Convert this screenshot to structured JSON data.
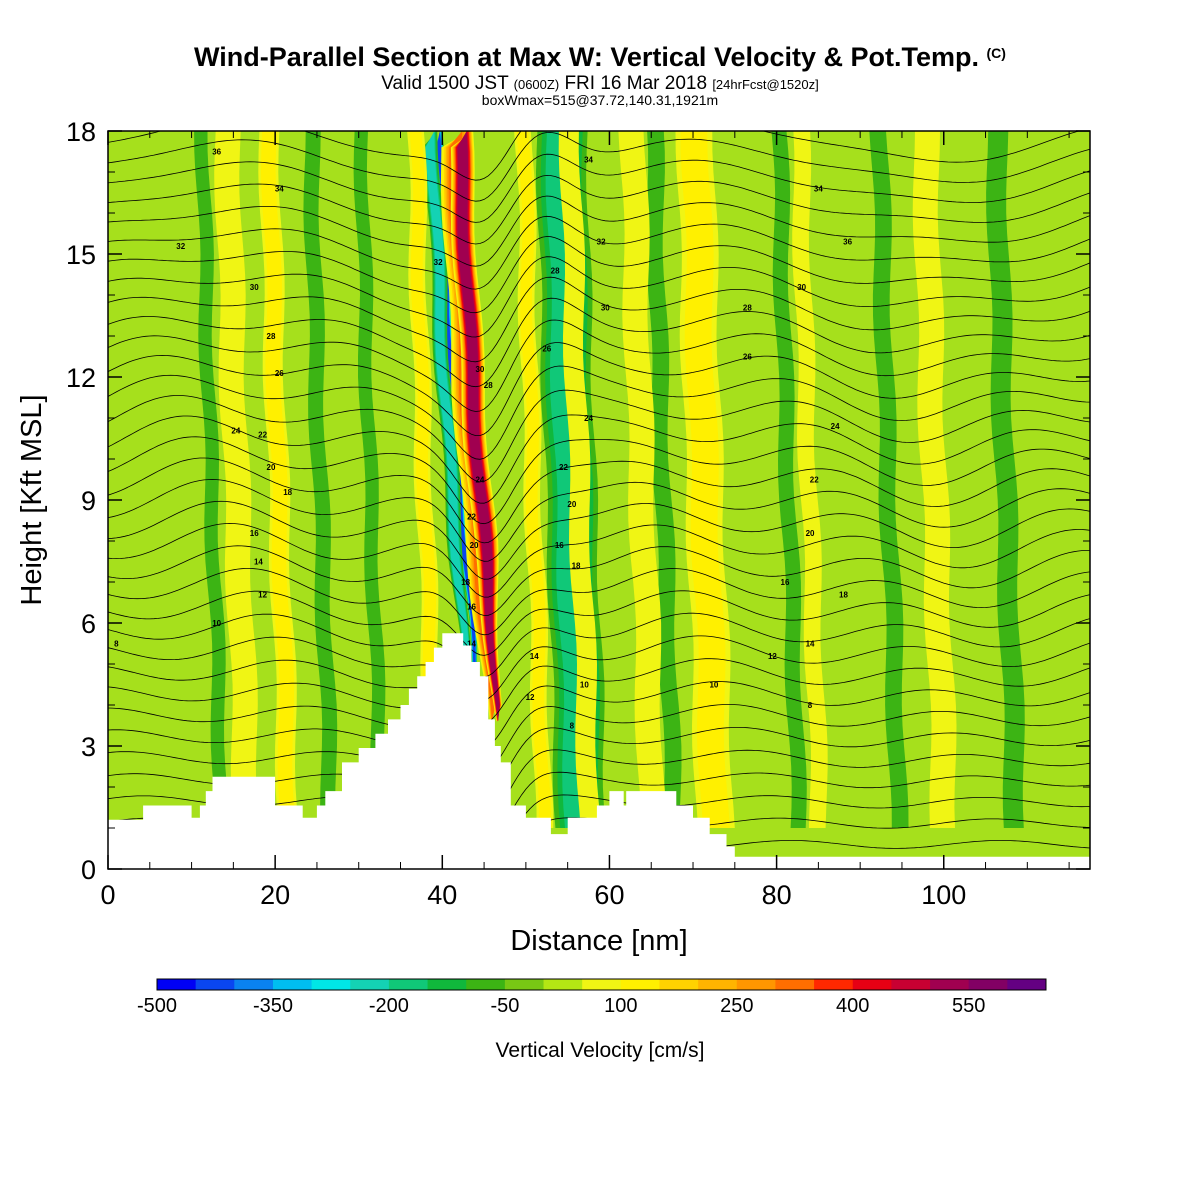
{
  "header": {
    "title": "Wind-Parallel Section at Max W: Vertical Velocity & Pot.Temp.",
    "copyright": "(C)",
    "valid_prefix": "Valid 1500 JST",
    "valid_utc": "(0600Z)",
    "valid_date": "FRI 16 Mar 2018",
    "forecast": "[24hrFcst@1520z]",
    "box_info": "boxWmax=515@37.72,140.31,1921m"
  },
  "chart_data": {
    "type": "heatmap",
    "xlabel": "Distance [nm]",
    "ylabel": "Height [Kft MSL]",
    "xlim": [
      0,
      117.5
    ],
    "ylim": [
      0,
      18
    ],
    "xticks": [
      0,
      20,
      40,
      60,
      80,
      100
    ],
    "yticks": [
      0,
      3,
      6,
      9,
      12,
      15,
      18
    ],
    "colorbar": {
      "label": "Vertical Velocity [cm/s]",
      "min": -500,
      "max": 650,
      "step": 50,
      "tick_labels": [
        "-500",
        "-350",
        "-200",
        "-50",
        "100",
        "250",
        "400",
        "550"
      ],
      "colors": [
        "#0000f5",
        "#0a46f0",
        "#0a82f0",
        "#00bef0",
        "#00e6e6",
        "#14d2b4",
        "#10c878",
        "#10b83c",
        "#3cb414",
        "#78c814",
        "#b4e614",
        "#f0f514",
        "#fff000",
        "#ffd200",
        "#ffb400",
        "#ff9600",
        "#ff6e00",
        "#ff2800",
        "#e60014",
        "#c80032",
        "#a00050",
        "#820064",
        "#640082"
      ]
    },
    "terrain": [
      [
        0,
        1.2
      ],
      [
        4.2,
        1.2
      ],
      [
        4.2,
        1.55
      ],
      [
        10,
        1.55
      ],
      [
        10,
        1.25
      ],
      [
        11,
        1.25
      ],
      [
        11,
        1.55
      ],
      [
        11.7,
        1.55
      ],
      [
        11.7,
        1.9
      ],
      [
        12.5,
        1.9
      ],
      [
        12.5,
        2.25
      ],
      [
        20,
        2.25
      ],
      [
        20,
        1.55
      ],
      [
        23.3,
        1.55
      ],
      [
        23.3,
        1.25
      ],
      [
        25,
        1.25
      ],
      [
        25,
        1.55
      ],
      [
        26,
        1.55
      ],
      [
        26,
        1.9
      ],
      [
        28,
        1.9
      ],
      [
        28,
        2.6
      ],
      [
        30,
        2.6
      ],
      [
        30,
        2.95
      ],
      [
        32,
        2.95
      ],
      [
        32,
        3.3
      ],
      [
        33.5,
        3.3
      ],
      [
        33.5,
        3.65
      ],
      [
        35,
        3.65
      ],
      [
        35,
        4.0
      ],
      [
        36,
        4.0
      ],
      [
        36,
        4.4
      ],
      [
        37,
        4.4
      ],
      [
        37,
        4.7
      ],
      [
        38,
        4.7
      ],
      [
        38,
        5.05
      ],
      [
        39,
        5.05
      ],
      [
        39,
        5.4
      ],
      [
        40,
        5.4
      ],
      [
        40,
        5.75
      ],
      [
        42.5,
        5.75
      ],
      [
        42.5,
        5.45
      ],
      [
        43.5,
        5.45
      ],
      [
        43.5,
        5.05
      ],
      [
        44.5,
        5.05
      ],
      [
        44.5,
        4.7
      ],
      [
        45.5,
        4.7
      ],
      [
        45.5,
        3.65
      ],
      [
        46.3,
        3.65
      ],
      [
        46.3,
        3.0
      ],
      [
        47,
        3.0
      ],
      [
        47,
        2.6
      ],
      [
        48.2,
        2.6
      ],
      [
        48.2,
        1.55
      ],
      [
        50,
        1.55
      ],
      [
        50,
        1.25
      ],
      [
        53,
        1.25
      ],
      [
        53,
        0.85
      ],
      [
        55,
        0.85
      ],
      [
        55,
        1.25
      ],
      [
        58.5,
        1.25
      ],
      [
        58.5,
        1.55
      ],
      [
        60,
        1.55
      ],
      [
        60,
        1.9
      ],
      [
        61.7,
        1.9
      ],
      [
        61.7,
        1.55
      ],
      [
        62,
        1.55
      ],
      [
        62,
        1.9
      ],
      [
        68,
        1.9
      ],
      [
        68,
        1.55
      ],
      [
        70,
        1.55
      ],
      [
        70,
        1.25
      ],
      [
        72,
        1.25
      ],
      [
        72,
        0.85
      ],
      [
        74,
        0.85
      ],
      [
        74,
        0.55
      ],
      [
        75,
        0.55
      ],
      [
        75,
        0.3
      ],
      [
        117.5,
        0.3
      ]
    ],
    "updrafts": [
      {
        "x": 46,
        "w": 1.4,
        "value": 515
      },
      {
        "x": 45.3,
        "w": 1.7,
        "value": 300
      },
      {
        "x": 21,
        "w": 1.2,
        "value": 120
      },
      {
        "x": 72,
        "w": 2.2,
        "value": 120
      },
      {
        "x": 51.5,
        "w": 1.0,
        "value": 110
      },
      {
        "x": 38.5,
        "w": 1.0,
        "value": 110
      },
      {
        "x": 84.5,
        "w": 1.0,
        "value": 90
      },
      {
        "x": 99.5,
        "w": 1.5,
        "value": 80
      },
      {
        "x": 16,
        "w": 1.5,
        "value": 70
      },
      {
        "x": 57,
        "w": 1.2,
        "value": 60
      },
      {
        "x": 64.5,
        "w": 1.5,
        "value": 60
      }
    ],
    "downdrafts": [
      {
        "x": 43.6,
        "w": 0.6,
        "value": -420
      },
      {
        "x": 42.6,
        "w": 0.9,
        "value": -240
      },
      {
        "x": 56,
        "w": 3.0,
        "value": -170
      },
      {
        "x": 26,
        "w": 0.9,
        "value": -90
      },
      {
        "x": 67,
        "w": 1.0,
        "value": -90
      },
      {
        "x": 82,
        "w": 0.9,
        "value": -90
      },
      {
        "x": 94,
        "w": 1.0,
        "value": -90
      },
      {
        "x": 13,
        "w": 0.8,
        "value": -60
      },
      {
        "x": 32,
        "w": 0.8,
        "value": -60
      },
      {
        "x": 108,
        "w": 1.2,
        "value": -60
      }
    ],
    "theta_contour_labels": [
      {
        "x": 1,
        "y": 5.5,
        "text": "8"
      },
      {
        "x": 13,
        "y": 6.0,
        "text": "10"
      },
      {
        "x": 18.5,
        "y": 6.7,
        "text": "12"
      },
      {
        "x": 18,
        "y": 7.5,
        "text": "14"
      },
      {
        "x": 17.5,
        "y": 8.2,
        "text": "16"
      },
      {
        "x": 21.5,
        "y": 9.2,
        "text": "18"
      },
      {
        "x": 19.5,
        "y": 9.8,
        "text": "20"
      },
      {
        "x": 18.5,
        "y": 10.6,
        "text": "22"
      },
      {
        "x": 15.3,
        "y": 10.7,
        "text": "24"
      },
      {
        "x": 20.5,
        "y": 12.1,
        "text": "26"
      },
      {
        "x": 19.5,
        "y": 13.0,
        "text": "28"
      },
      {
        "x": 17.5,
        "y": 14.2,
        "text": "30"
      },
      {
        "x": 8.7,
        "y": 15.2,
        "text": "32"
      },
      {
        "x": 20.5,
        "y": 16.6,
        "text": "34"
      },
      {
        "x": 13,
        "y": 17.5,
        "text": "36"
      },
      {
        "x": 39.5,
        "y": 14.8,
        "text": "32"
      },
      {
        "x": 44.5,
        "y": 12.2,
        "text": "30"
      },
      {
        "x": 45.5,
        "y": 11.8,
        "text": "28"
      },
      {
        "x": 44.5,
        "y": 9.5,
        "text": "24"
      },
      {
        "x": 43.5,
        "y": 8.6,
        "text": "22"
      },
      {
        "x": 43.8,
        "y": 7.9,
        "text": "20"
      },
      {
        "x": 42.8,
        "y": 7.0,
        "text": "18"
      },
      {
        "x": 43.5,
        "y": 6.4,
        "text": "16"
      },
      {
        "x": 43.5,
        "y": 5.5,
        "text": "14"
      },
      {
        "x": 51,
        "y": 5.2,
        "text": "14"
      },
      {
        "x": 50.5,
        "y": 4.2,
        "text": "12"
      },
      {
        "x": 55.5,
        "y": 3.5,
        "text": "8"
      },
      {
        "x": 57,
        "y": 4.5,
        "text": "10"
      },
      {
        "x": 54,
        "y": 7.9,
        "text": "16"
      },
      {
        "x": 56,
        "y": 7.4,
        "text": "18"
      },
      {
        "x": 55.5,
        "y": 8.9,
        "text": "20"
      },
      {
        "x": 54.5,
        "y": 9.8,
        "text": "22"
      },
      {
        "x": 57.5,
        "y": 11.0,
        "text": "24"
      },
      {
        "x": 52.5,
        "y": 12.7,
        "text": "26"
      },
      {
        "x": 53.5,
        "y": 14.6,
        "text": "28"
      },
      {
        "x": 59.5,
        "y": 13.7,
        "text": "30"
      },
      {
        "x": 59,
        "y": 15.3,
        "text": "32"
      },
      {
        "x": 57.5,
        "y": 17.3,
        "text": "34"
      },
      {
        "x": 72.5,
        "y": 4.5,
        "text": "10"
      },
      {
        "x": 79.5,
        "y": 5.2,
        "text": "12"
      },
      {
        "x": 84,
        "y": 5.5,
        "text": "14"
      },
      {
        "x": 81,
        "y": 7.0,
        "text": "16"
      },
      {
        "x": 88,
        "y": 6.7,
        "text": "18"
      },
      {
        "x": 84,
        "y": 8.2,
        "text": "20"
      },
      {
        "x": 84.5,
        "y": 9.5,
        "text": "22"
      },
      {
        "x": 87,
        "y": 10.8,
        "text": "24"
      },
      {
        "x": 76.5,
        "y": 12.5,
        "text": "26"
      },
      {
        "x": 76.5,
        "y": 13.7,
        "text": "28"
      },
      {
        "x": 83,
        "y": 14.2,
        "text": "30"
      },
      {
        "x": 85,
        "y": 16.6,
        "text": "34"
      },
      {
        "x": 88.5,
        "y": 15.3,
        "text": "36"
      },
      {
        "x": 84,
        "y": 4.0,
        "text": "8"
      }
    ]
  }
}
